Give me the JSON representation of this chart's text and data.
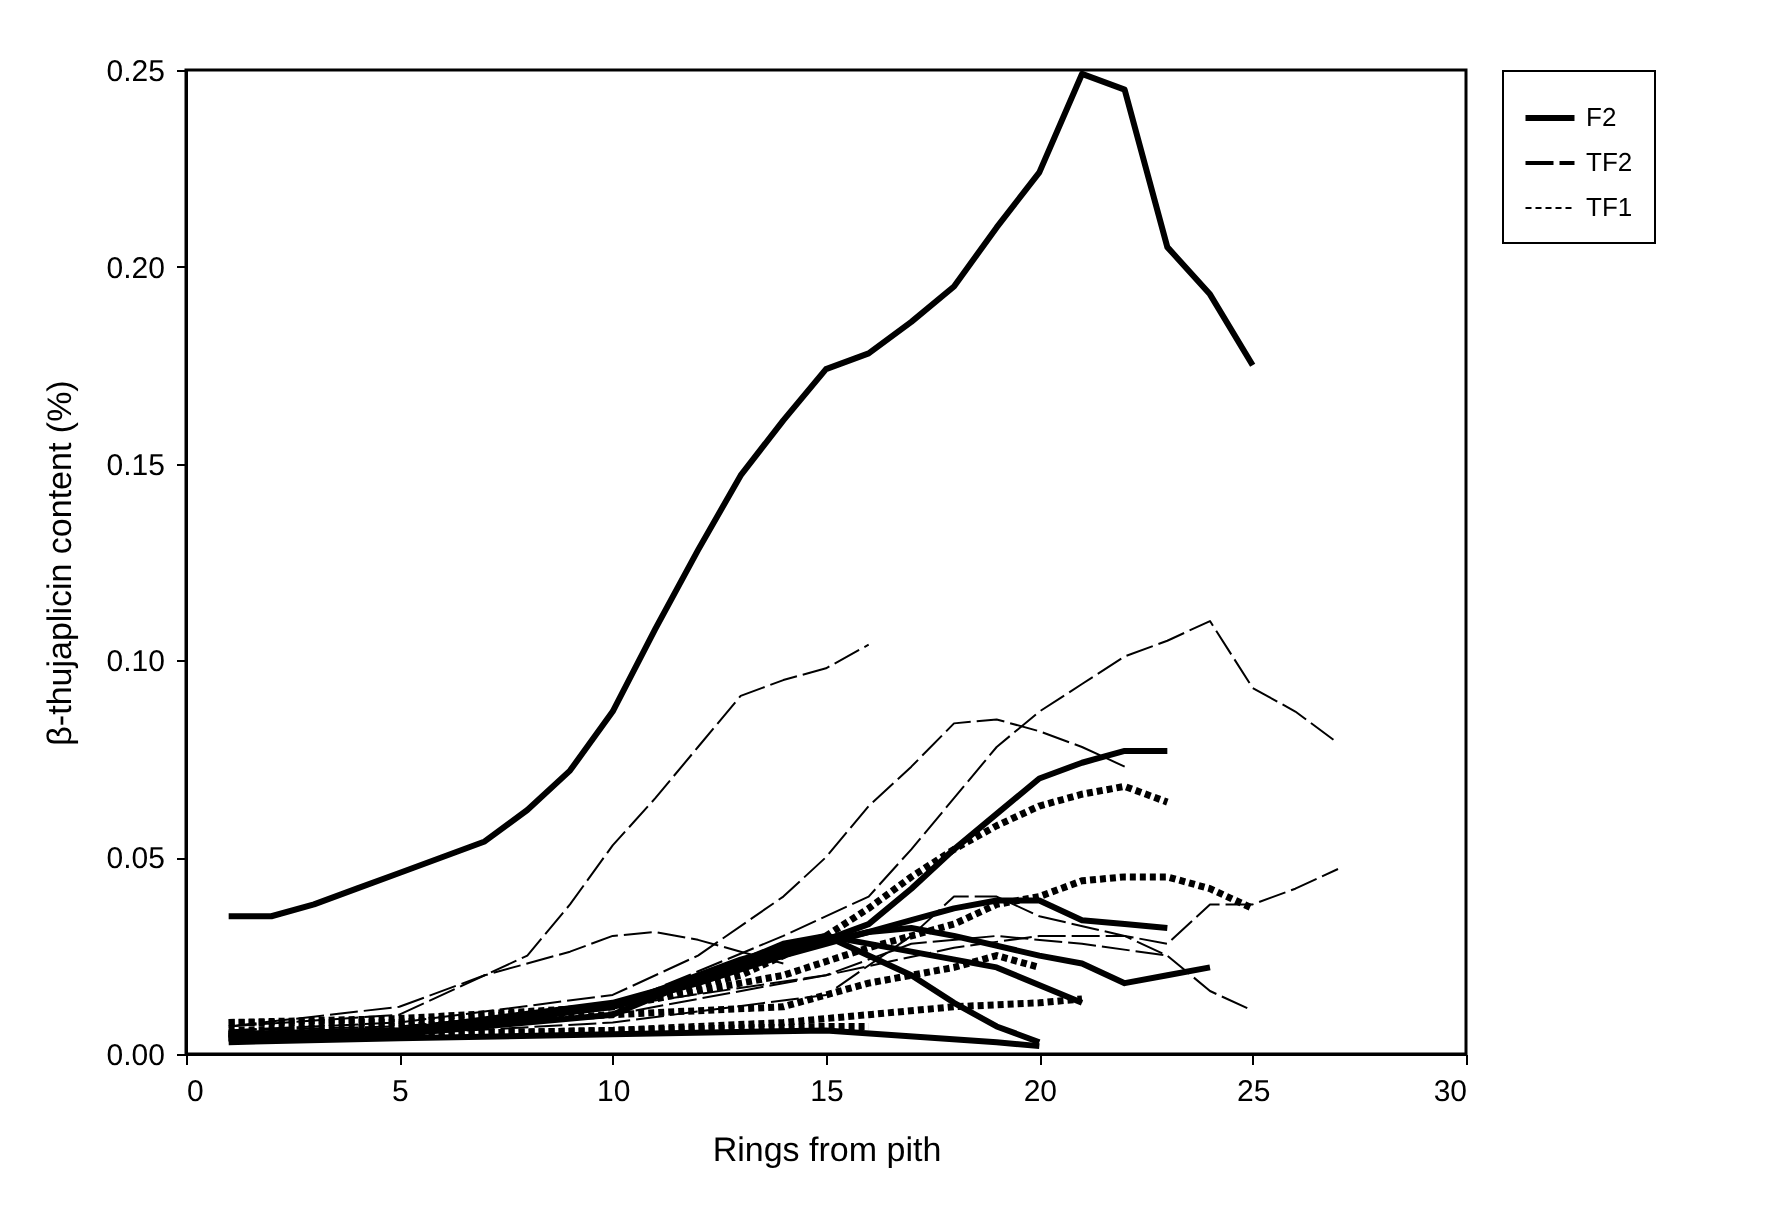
{
  "chart_data": {
    "type": "line",
    "xlabel": "Rings from pith",
    "ylabel": "β-thujaplicin content (%)",
    "xlim": [
      0,
      30
    ],
    "xticks": [
      0,
      5,
      10,
      15,
      20,
      25,
      30
    ],
    "ylim": [
      0,
      0.25
    ],
    "yticks": [
      {
        "value": 0,
        "label": "0.00"
      },
      {
        "value": 0.05,
        "label": "0.05"
      },
      {
        "value": 0.1,
        "label": "0.10"
      },
      {
        "value": 0.15,
        "label": "0.15"
      },
      {
        "value": 0.2,
        "label": "0.20"
      },
      {
        "value": 0.25,
        "label": "0.25"
      }
    ],
    "legend": "right",
    "grid": false,
    "marker": "none",
    "series": [
      {
        "name": "F2",
        "color": "#000000",
        "line_style": "solid",
        "x": [
          1,
          2,
          3,
          4,
          5,
          6,
          7,
          8,
          9,
          10,
          11,
          12,
          13,
          14,
          15,
          16,
          17,
          18,
          19,
          20,
          21,
          22,
          23,
          24,
          25
        ],
        "values": [
          0.035,
          0.035,
          0.038,
          0.042,
          0.046,
          0.05,
          0.054,
          0.062,
          0.072,
          0.087,
          0.108,
          0.128,
          0.147,
          0.161,
          0.174,
          0.178,
          0.186,
          0.195,
          0.21,
          0.224,
          0.249,
          0.245,
          0.205,
          0.193,
          0.175
        ]
      },
      {
        "color": "#000000",
        "line_style": "solid",
        "x": [
          1,
          5,
          10,
          12,
          14,
          16,
          17,
          18,
          19,
          20,
          21,
          22,
          23
        ],
        "values": [
          0.005,
          0.006,
          0.012,
          0.018,
          0.025,
          0.033,
          0.042,
          0.052,
          0.061,
          0.07,
          0.074,
          0.077,
          0.077
        ]
      },
      {
        "color": "#000000",
        "line_style": "solid",
        "x": [
          1,
          5,
          10,
          13,
          15,
          17,
          18,
          19,
          20,
          21,
          22,
          23
        ],
        "values": [
          0.005,
          0.006,
          0.013,
          0.022,
          0.028,
          0.034,
          0.037,
          0.039,
          0.039,
          0.034,
          0.033,
          0.032
        ]
      },
      {
        "color": "#000000",
        "line_style": "solid",
        "x": [
          1,
          5,
          10,
          13,
          15,
          17,
          19,
          21
        ],
        "values": [
          0.004,
          0.005,
          0.012,
          0.024,
          0.03,
          0.026,
          0.022,
          0.013
        ]
      },
      {
        "color": "#000000",
        "line_style": "solid",
        "x": [
          1,
          5,
          10,
          14,
          15,
          17,
          18,
          19,
          20
        ],
        "values": [
          0.004,
          0.005,
          0.01,
          0.028,
          0.03,
          0.02,
          0.013,
          0.007,
          0.003
        ]
      },
      {
        "color": "#000000",
        "line_style": "solid",
        "x": [
          1,
          5,
          10,
          15,
          19,
          20
        ],
        "values": [
          0.003,
          0.004,
          0.005,
          0.006,
          0.003,
          0.002
        ]
      },
      {
        "color": "#000000",
        "line_style": "solid",
        "x": [
          1,
          5,
          10,
          14,
          16,
          17,
          18,
          20,
          21,
          22,
          23,
          24
        ],
        "values": [
          0.005,
          0.006,
          0.012,
          0.026,
          0.031,
          0.032,
          0.03,
          0.025,
          0.023,
          0.018,
          0.02,
          0.022
        ]
      },
      {
        "name": "TF2",
        "color": "#000000",
        "line_style": "dashed",
        "x": [
          1,
          5,
          7,
          8,
          9,
          10,
          11,
          12,
          13,
          14,
          15,
          16
        ],
        "values": [
          0.007,
          0.01,
          0.02,
          0.025,
          0.038,
          0.053,
          0.065,
          0.078,
          0.091,
          0.095,
          0.098,
          0.104
        ]
      },
      {
        "color": "#000000",
        "line_style": "dashed",
        "x": [
          1,
          5,
          10,
          14,
          16,
          17,
          18,
          19,
          20,
          21,
          22,
          23,
          24,
          25,
          26,
          27
        ],
        "values": [
          0.005,
          0.006,
          0.012,
          0.03,
          0.04,
          0.052,
          0.065,
          0.078,
          0.087,
          0.094,
          0.101,
          0.105,
          0.11,
          0.093,
          0.087,
          0.079
        ]
      },
      {
        "color": "#000000",
        "line_style": "dashed",
        "x": [
          1,
          5,
          10,
          12,
          14,
          15,
          16,
          17,
          18,
          19,
          20,
          21,
          22
        ],
        "values": [
          0.006,
          0.008,
          0.015,
          0.025,
          0.04,
          0.05,
          0.063,
          0.073,
          0.084,
          0.085,
          0.082,
          0.078,
          0.073
        ]
      },
      {
        "color": "#000000",
        "line_style": "dashed",
        "x": [
          1,
          5,
          7,
          9,
          10,
          11,
          12,
          13,
          14
        ],
        "values": [
          0.007,
          0.012,
          0.02,
          0.026,
          0.03,
          0.031,
          0.029,
          0.026,
          0.023
        ]
      },
      {
        "color": "#000000",
        "line_style": "dashed",
        "x": [
          1,
          5,
          10,
          15,
          18,
          20,
          22,
          23,
          24,
          25,
          26,
          27
        ],
        "values": [
          0.006,
          0.007,
          0.012,
          0.02,
          0.027,
          0.03,
          0.03,
          0.028,
          0.038,
          0.038,
          0.042,
          0.047
        ]
      },
      {
        "color": "#000000",
        "line_style": "dashed",
        "x": [
          1,
          5,
          10,
          15,
          17,
          18,
          19,
          20,
          22,
          23,
          24,
          25
        ],
        "values": [
          0.004,
          0.005,
          0.008,
          0.015,
          0.03,
          0.04,
          0.04,
          0.035,
          0.03,
          0.025,
          0.016,
          0.011
        ]
      },
      {
        "color": "#000000",
        "line_style": "dashed",
        "x": [
          1,
          5,
          10,
          15,
          17,
          19,
          21,
          23
        ],
        "values": [
          0.005,
          0.006,
          0.01,
          0.02,
          0.028,
          0.03,
          0.028,
          0.025
        ]
      },
      {
        "name": "TF1",
        "color": "#000000",
        "line_style": "dotted",
        "x": [
          1,
          5,
          10,
          13,
          15,
          16,
          17,
          18,
          19,
          20,
          21,
          22,
          23
        ],
        "values": [
          0.008,
          0.008,
          0.012,
          0.02,
          0.03,
          0.037,
          0.045,
          0.052,
          0.058,
          0.063,
          0.066,
          0.068,
          0.064
        ]
      },
      {
        "color": "#000000",
        "line_style": "dotted",
        "x": [
          1,
          5,
          10,
          14,
          16,
          18,
          19,
          20,
          21,
          22,
          23,
          24,
          25
        ],
        "values": [
          0.008,
          0.009,
          0.012,
          0.02,
          0.027,
          0.033,
          0.038,
          0.04,
          0.044,
          0.045,
          0.045,
          0.042,
          0.037
        ]
      },
      {
        "color": "#000000",
        "line_style": "dotted",
        "x": [
          1,
          5,
          10,
          14,
          15,
          16,
          17,
          18,
          19,
          20
        ],
        "values": [
          0.006,
          0.007,
          0.01,
          0.012,
          0.015,
          0.018,
          0.02,
          0.022,
          0.025,
          0.022
        ]
      },
      {
        "color": "#000000",
        "line_style": "dotted",
        "x": [
          1,
          5,
          10,
          14,
          16,
          18,
          20,
          21
        ],
        "values": [
          0.004,
          0.005,
          0.006,
          0.008,
          0.01,
          0.012,
          0.013,
          0.014
        ]
      },
      {
        "color": "#000000",
        "line_style": "dotted",
        "x": [
          1,
          5,
          10,
          15,
          16
        ],
        "values": [
          0.005,
          0.005,
          0.006,
          0.007,
          0.007
        ]
      }
    ]
  }
}
